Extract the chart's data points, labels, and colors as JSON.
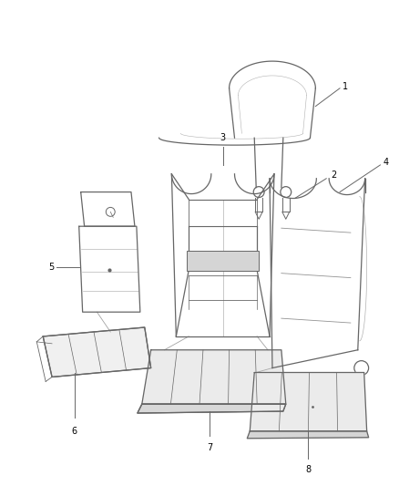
{
  "background_color": "#ffffff",
  "line_color": "#666666",
  "fill_color": "#e8e8e8",
  "label_color": "#000000",
  "figsize": [
    4.38,
    5.33
  ],
  "dpi": 100
}
